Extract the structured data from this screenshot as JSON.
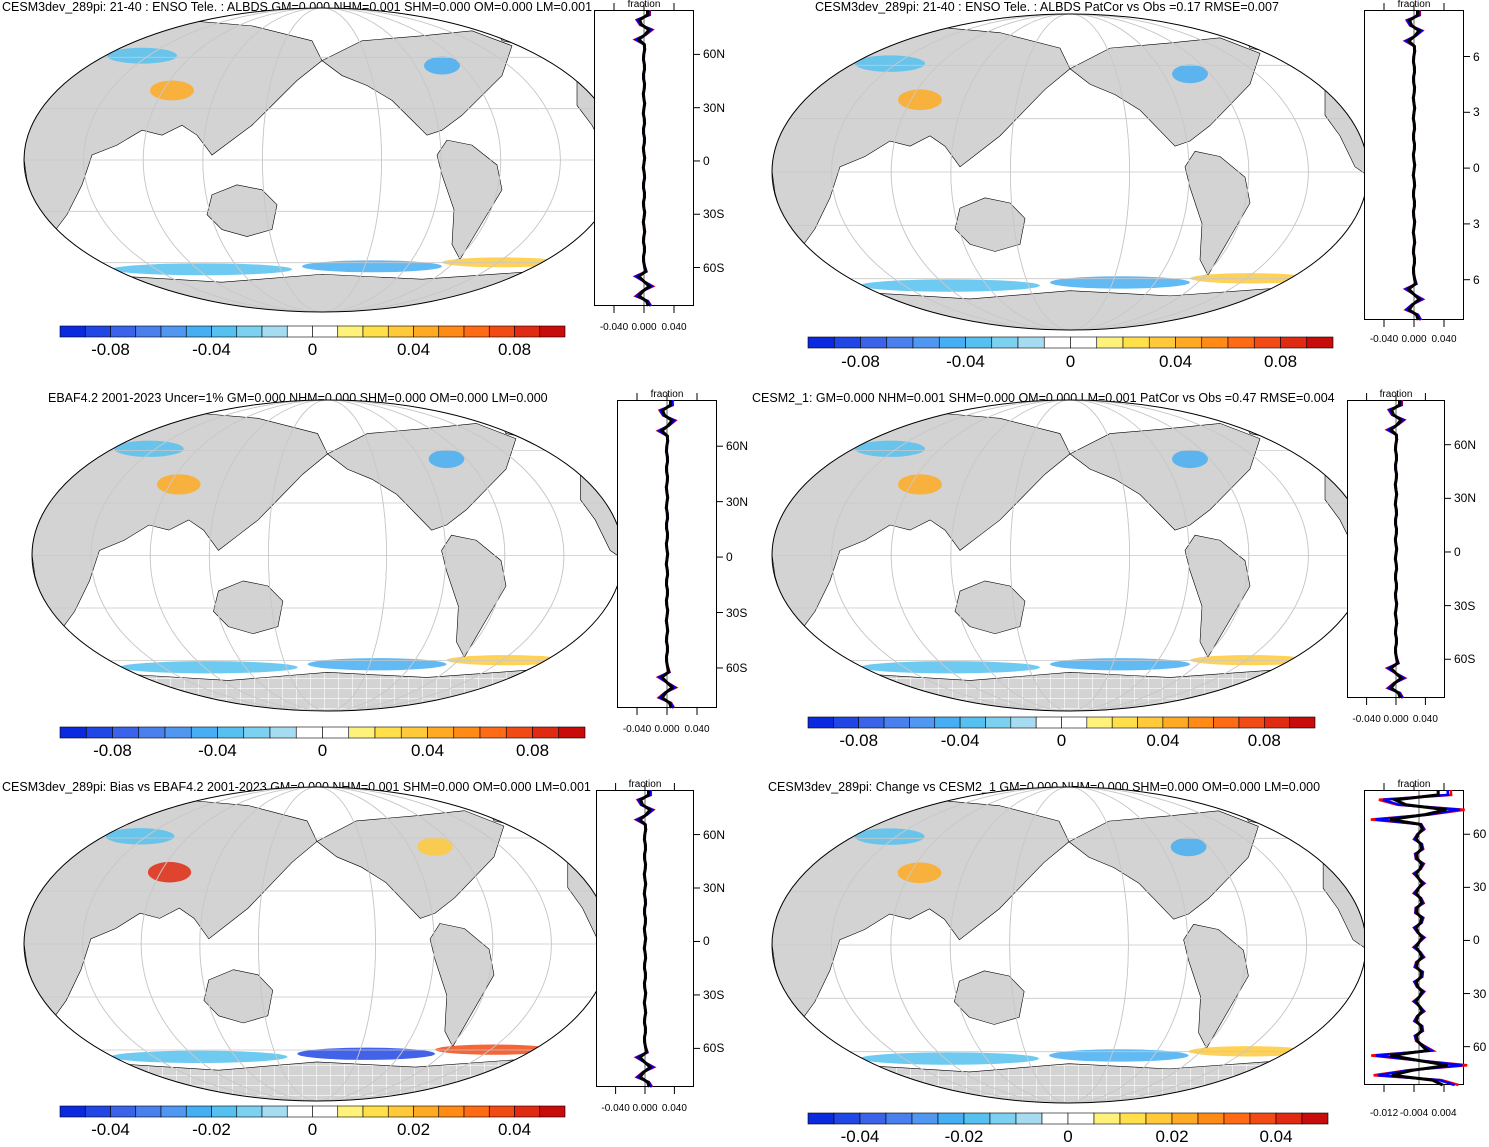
{
  "figure": {
    "panels": [
      {
        "id": "p1",
        "title": "CESM3dev_289pi: 21-40 : ENSO Tele. : ALBDS GM=0.000 NHM=0.001 SHM=0.000 OM=0.000 LM=0.001",
        "colorbar_ticks": [
          "-0.08",
          "-0.04",
          "0",
          "0.04",
          "0.08"
        ],
        "profile_ticks": [
          "-0.040",
          "0.000",
          "0.040"
        ],
        "lat_ticks": [
          "60N",
          "30N",
          "0",
          "30S",
          "60S"
        ],
        "fraction_label": "fraction",
        "antarctic_hatch": false
      },
      {
        "id": "p2",
        "title": "CESM3dev_289pi: 21-40 : ENSO Tele. : ALBDS PatCor vs Obs =0.17 RMSE=0.007",
        "colorbar_ticks": [
          "-0.08",
          "-0.04",
          "0",
          "0.04",
          "0.08"
        ],
        "profile_ticks": [
          "-0.040",
          "0.000",
          "0.040"
        ],
        "lat_ticks": [
          "6",
          "3",
          "0",
          "3",
          "6"
        ],
        "fraction_label": "fraction",
        "antarctic_hatch": false
      },
      {
        "id": "p3",
        "title": "EBAF4.2 2001-2023 Uncer=1% GM=0.000 NHM=0.000 SHM=0.000 OM=0.000 LM=0.000",
        "colorbar_ticks": [
          "-0.08",
          "-0.04",
          "0",
          "0.04",
          "0.08"
        ],
        "profile_ticks": [
          "-0.040",
          "0.000",
          "0.040"
        ],
        "lat_ticks": [
          "60N",
          "30N",
          "0",
          "30S",
          "60S"
        ],
        "fraction_label": "fraction",
        "antarctic_hatch": true
      },
      {
        "id": "p4",
        "title": "CESM2_1: GM=0.000 NHM=0.001 SHM=0.000 OM=0.000 LM=0.001 PatCor vs Obs =0.47 RMSE=0.004",
        "colorbar_ticks": [
          "-0.08",
          "-0.04",
          "0",
          "0.04",
          "0.08"
        ],
        "profile_ticks": [
          "-0.040",
          "0.000",
          "0.040"
        ],
        "lat_ticks": [
          "60N",
          "30N",
          "0",
          "30S",
          "60S"
        ],
        "fraction_label": "fraction",
        "antarctic_hatch": true
      },
      {
        "id": "p5",
        "title": "CESM3dev_289pi: Bias vs EBAF4.2 2001-2023 GM=0.000 NHM=0.001 SHM=0.000 OM=0.000 LM=0.001",
        "colorbar_ticks": [
          "-0.04",
          "-0.02",
          "0",
          "0.02",
          "0.04"
        ],
        "profile_ticks": [
          "-0.040",
          "0.000",
          "0.040"
        ],
        "lat_ticks": [
          "60N",
          "30N",
          "0",
          "30S",
          "60S"
        ],
        "fraction_label": "fraction",
        "antarctic_hatch": true
      },
      {
        "id": "p6",
        "title": "CESM3dev_289pi: Change vs CESM2_1 GM=0.000 NHM=0.000 SHM=0.000 OM=0.000 LM=0.000",
        "colorbar_ticks": [
          "-0.04",
          "-0.02",
          "0",
          "0.02",
          "0.04"
        ],
        "profile_ticks": [
          "-0.012",
          "-0.004",
          "0.004"
        ],
        "lat_ticks": [
          "60",
          "30",
          "0",
          "30",
          "60"
        ],
        "fraction_label": "fraction",
        "antarctic_hatch": true
      }
    ],
    "colors": {
      "land": "#d3d3d3",
      "grid": "#c8c8c8",
      "profile_model": "#ff0000",
      "profile_obs": "#0000ff",
      "profile_mean": "#000000",
      "colorbar": [
        "#0b2ae0",
        "#2146e6",
        "#3a63ea",
        "#4a7fee",
        "#4f97f0",
        "#46aef2",
        "#56c1f0",
        "#7cd0f0",
        "#a6dcf2",
        "#ffffff",
        "#ffffff",
        "#fff27a",
        "#ffe04a",
        "#ffc93a",
        "#ffaa22",
        "#ff8a16",
        "#ff6a14",
        "#f24a14",
        "#e12a12",
        "#c80c0c"
      ]
    }
  }
}
